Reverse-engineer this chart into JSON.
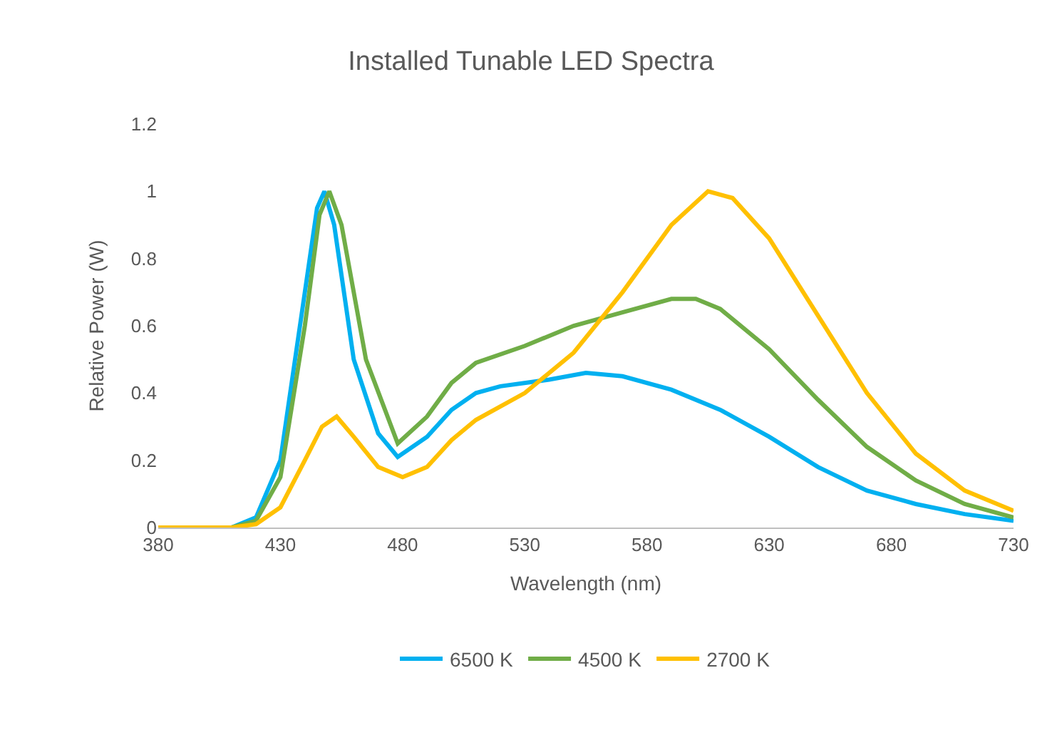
{
  "chart_data": {
    "type": "line",
    "title": "Installed Tunable LED Spectra",
    "xlabel": "Wavelength (nm)",
    "ylabel": "Relative Power (W)",
    "xlim": [
      380,
      730
    ],
    "xticks": [
      380,
      430,
      480,
      530,
      580,
      630,
      680,
      730
    ],
    "ylim": [
      0,
      1.2
    ],
    "yticks": [
      0,
      0.2,
      0.4,
      0.6,
      0.8,
      1,
      1.2
    ],
    "grid": false,
    "legend": "bottom",
    "marker": "none",
    "line_style": "solid",
    "series": [
      {
        "name": "6500 K",
        "color": "#00b0f0",
        "x": [
          380,
          400,
          410,
          420,
          430,
          440,
          445,
          448,
          452,
          460,
          470,
          478,
          490,
          500,
          510,
          520,
          540,
          555,
          570,
          590,
          610,
          630,
          650,
          670,
          690,
          710,
          730
        ],
        "values": [
          0,
          0,
          0,
          0.03,
          0.2,
          0.7,
          0.95,
          1.0,
          0.9,
          0.5,
          0.28,
          0.21,
          0.27,
          0.35,
          0.4,
          0.42,
          0.44,
          0.46,
          0.45,
          0.41,
          0.35,
          0.27,
          0.18,
          0.11,
          0.07,
          0.04,
          0.02
        ]
      },
      {
        "name": "4500 K",
        "color": "#70ad47",
        "x": [
          380,
          400,
          410,
          420,
          430,
          440,
          446,
          450,
          455,
          465,
          478,
          490,
          500,
          510,
          530,
          550,
          570,
          590,
          600,
          610,
          630,
          650,
          670,
          690,
          710,
          730
        ],
        "values": [
          0,
          0,
          0,
          0.02,
          0.15,
          0.6,
          0.93,
          1.0,
          0.9,
          0.5,
          0.25,
          0.33,
          0.43,
          0.49,
          0.54,
          0.6,
          0.64,
          0.68,
          0.68,
          0.65,
          0.53,
          0.38,
          0.24,
          0.14,
          0.07,
          0.03
        ]
      },
      {
        "name": "2700 K",
        "color": "#ffc000",
        "x": [
          380,
          400,
          410,
          420,
          430,
          440,
          447,
          453,
          460,
          470,
          480,
          490,
          500,
          510,
          530,
          550,
          570,
          590,
          605,
          615,
          630,
          650,
          670,
          690,
          710,
          730
        ],
        "values": [
          0,
          0,
          0,
          0.01,
          0.06,
          0.2,
          0.3,
          0.33,
          0.27,
          0.18,
          0.15,
          0.18,
          0.26,
          0.32,
          0.4,
          0.52,
          0.7,
          0.9,
          1.0,
          0.98,
          0.86,
          0.63,
          0.4,
          0.22,
          0.11,
          0.05
        ]
      }
    ]
  }
}
